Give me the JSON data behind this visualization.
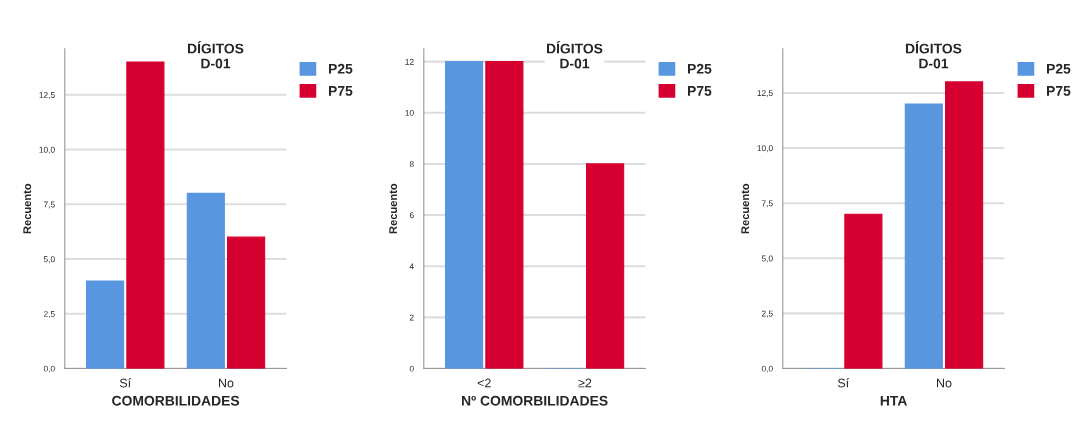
{
  "chart_data": [
    {
      "type": "bar",
      "title": "DÍGITOS\nD-01",
      "xlabel": "COMORBILIDADES",
      "ylabel": "Recuento",
      "categories": [
        "Sí",
        "No"
      ],
      "series": [
        {
          "name": "P25",
          "color": "#5896e0",
          "values": [
            4,
            8
          ]
        },
        {
          "name": "P75",
          "color": "#d5002f",
          "values": [
            14,
            6
          ]
        }
      ],
      "ylim": [
        0,
        14.6
      ],
      "yticks": [
        {
          "value": 0,
          "label": "0,0"
        },
        {
          "value": 2.5,
          "label": "2,5"
        },
        {
          "value": 5,
          "label": "5,0"
        },
        {
          "value": 7.5,
          "label": "7,5"
        },
        {
          "value": 10,
          "label": "10,0"
        },
        {
          "value": 12.5,
          "label": "12,5"
        }
      ],
      "grid": "y",
      "legend": "top right"
    },
    {
      "type": "bar",
      "title": "DÍGITOS\nD-01",
      "xlabel": "Nº COMORBILIDADES",
      "ylabel": "Recuento",
      "categories": [
        "<2",
        "≥2"
      ],
      "series": [
        {
          "name": "P25",
          "color": "#5896e0",
          "values": [
            12,
            0
          ]
        },
        {
          "name": "P75",
          "color": "#d5002f",
          "values": [
            12,
            8
          ]
        }
      ],
      "ylim": [
        0,
        12.5
      ],
      "yticks": [
        0,
        2,
        4,
        6,
        8,
        10,
        12
      ],
      "grid": "y",
      "legend": "top right"
    },
    {
      "type": "bar",
      "title": "DÍGITOS\nD-01",
      "xlabel": "HTA",
      "ylabel": "Recuento",
      "categories": [
        "Sí",
        "No"
      ],
      "series": [
        {
          "name": "P25",
          "color": "#5896e0",
          "values": [
            0,
            12
          ]
        },
        {
          "name": "P75",
          "color": "#d5002f",
          "values": [
            7,
            13
          ]
        }
      ],
      "ylim": [
        0,
        14.5
      ],
      "yticks": [
        {
          "value": 0,
          "label": "0,0"
        },
        {
          "value": 2.5,
          "label": "2,5"
        },
        {
          "value": 5,
          "label": "5,0"
        },
        {
          "value": 7.5,
          "label": "7,5"
        },
        {
          "value": 10,
          "label": "10,0"
        },
        {
          "value": 12.5,
          "label": "12,5"
        }
      ],
      "grid": "y",
      "legend": "top right"
    }
  ]
}
